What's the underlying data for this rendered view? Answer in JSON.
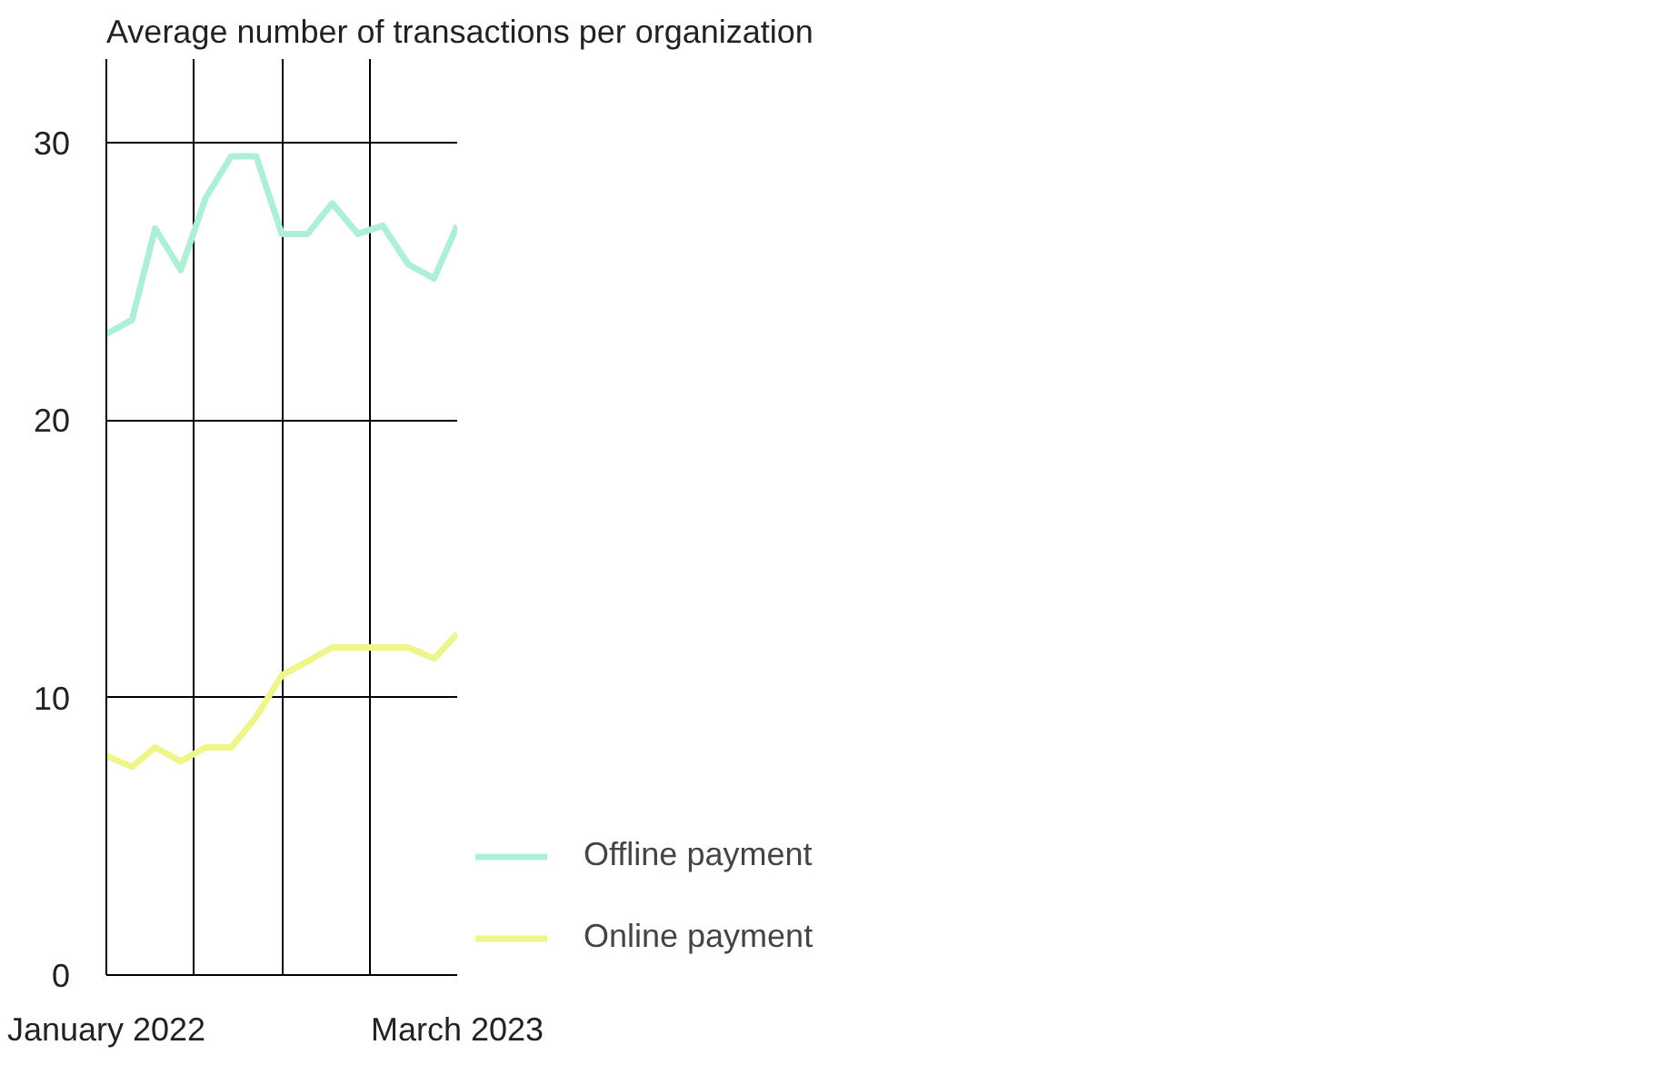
{
  "chart_data": {
    "type": "line",
    "ylabel": "Average number of transactions per organization",
    "x": [
      "2022-01",
      "2022-02",
      "2022-03",
      "2022-04",
      "2022-05",
      "2022-06",
      "2022-07",
      "2022-08",
      "2022-09",
      "2022-10",
      "2022-11",
      "2022-12",
      "2023-01",
      "2023-02",
      "2023-03"
    ],
    "series": [
      {
        "name": "Offline payment",
        "color": "#aef0d6",
        "values": [
          23.1,
          23.6,
          26.9,
          25.4,
          28.0,
          29.5,
          29.5,
          26.7,
          26.7,
          27.8,
          26.7,
          27.0,
          25.6,
          25.1,
          27.0
        ]
      },
      {
        "name": "Online payment",
        "color": "#eef58a",
        "values": [
          7.9,
          7.5,
          8.2,
          7.7,
          8.2,
          8.2,
          9.3,
          10.8,
          11.3,
          11.8,
          11.8,
          11.8,
          11.8,
          11.4,
          12.3
        ]
      }
    ],
    "xlim": [
      "2022-01",
      "2023-03"
    ],
    "xticks": [
      {
        "value": "2022-01",
        "label": "January 2022"
      },
      {
        "value": "2022-04-16",
        "label": null
      },
      {
        "value": "2022-08-01",
        "label": null
      },
      {
        "value": "2022-11-16",
        "label": null
      },
      {
        "value": "2023-03",
        "label": "March 2023"
      }
    ],
    "ylim": [
      0,
      33
    ],
    "yticks": [
      0,
      10,
      20,
      30
    ],
    "grid": true,
    "legend": "bottom right",
    "marker": "none",
    "line_style": "solid"
  }
}
